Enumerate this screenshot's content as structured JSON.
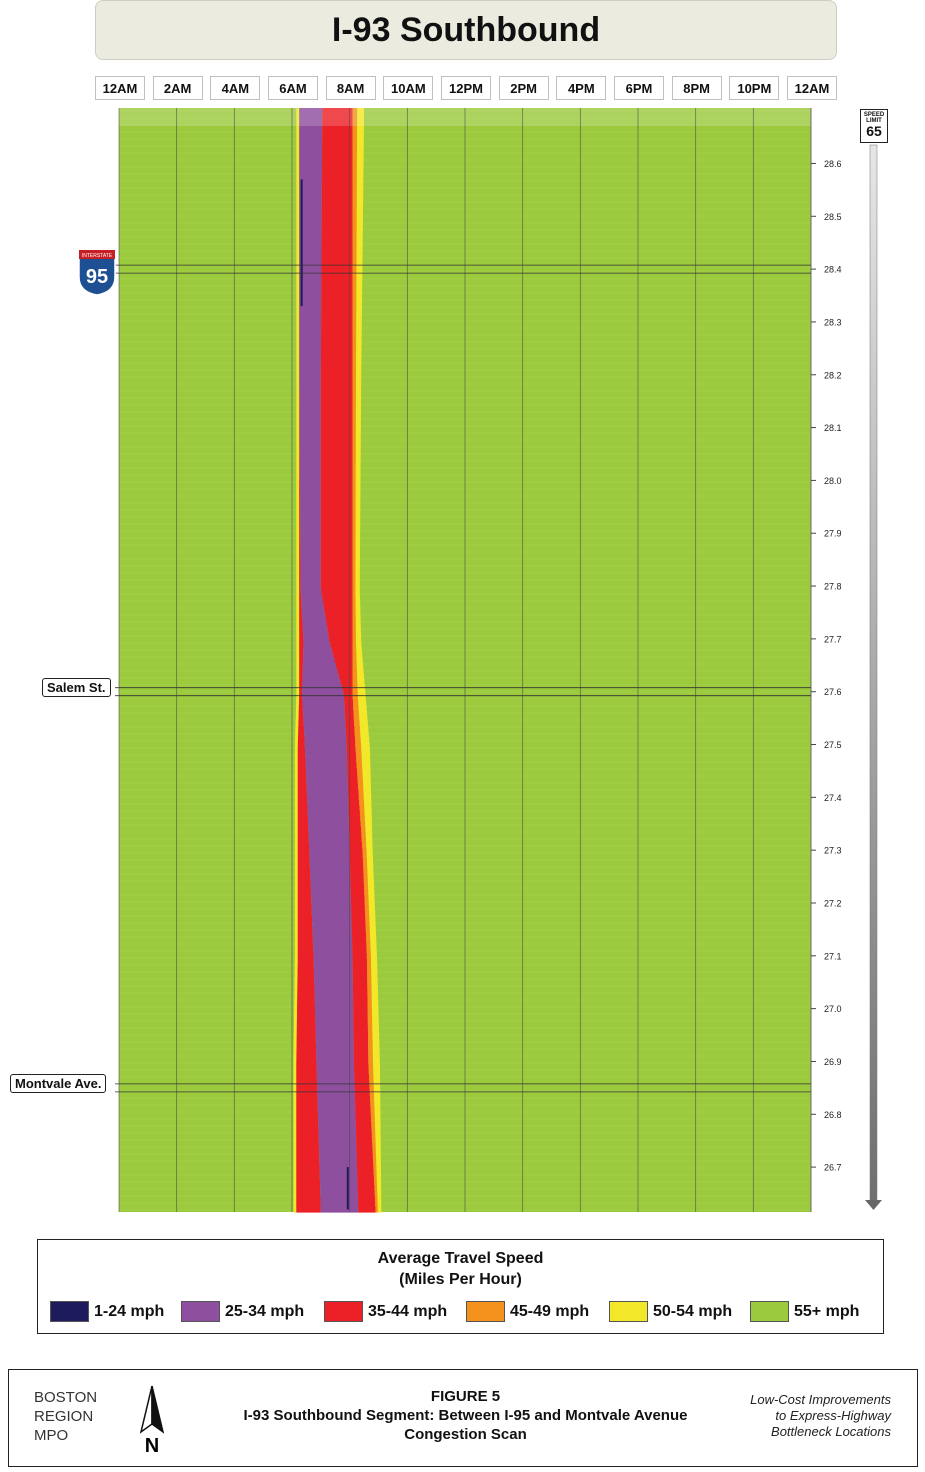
{
  "header": {
    "title": "I-93 Southbound"
  },
  "landmarks": [
    {
      "label": "95",
      "kind": "interstate-shield",
      "shield_top_text": "INTERSTATE",
      "milepost": 28.4
    },
    {
      "label": "Salem St.",
      "kind": "street",
      "milepost": 27.6
    },
    {
      "label": "Montvale Ave.",
      "kind": "street",
      "milepost": 26.85
    }
  ],
  "speed_limit_sign": {
    "top_text": "SPEED LIMIT",
    "value": "65"
  },
  "legend": {
    "title_line1": "Average Travel Speed",
    "title_line2": "(Miles Per Hour)",
    "items": [
      {
        "label": "1-24 mph",
        "color": "#1d1b5c"
      },
      {
        "label": "25-34 mph",
        "color": "#8e4f9e"
      },
      {
        "label": "35-44 mph",
        "color": "#ec2027"
      },
      {
        "label": "45-49 mph",
        "color": "#f5921e"
      },
      {
        "label": "50-54 mph",
        "color": "#f2e829"
      },
      {
        "label": "55+ mph",
        "color": "#9bca3c"
      }
    ]
  },
  "footer": {
    "org_line1": "BOSTON",
    "org_line2": "REGION",
    "org_line3": "MPO",
    "north_label": "N",
    "figure_label": "FIGURE 5",
    "figure_title_line1": "I-93 Southbound Segment: Between I-95 and Montvale Avenue",
    "figure_title_line2": "Congestion Scan",
    "study_line1": "Low-Cost Improvements",
    "study_line2": "to Express-Highway",
    "study_line3": "Bottleneck Locations"
  },
  "chart_data": {
    "type": "heatmap",
    "title": "I-93 Southbound",
    "x_tick_labels": [
      "12AM",
      "2AM",
      "4AM",
      "6AM",
      "8AM",
      "10AM",
      "12PM",
      "2PM",
      "4PM",
      "6PM",
      "8PM",
      "10PM",
      "12AM"
    ],
    "x_unit": "hour of day",
    "xlim": [
      0,
      24
    ],
    "y_tick_labels": [
      "28.6",
      "28.5",
      "28.4",
      "28.3",
      "28.2",
      "28.1",
      "28.0",
      "27.9",
      "27.8",
      "27.7",
      "27.6",
      "27.5",
      "27.4",
      "27.3",
      "27.2",
      "27.1",
      "27.0",
      "26.9",
      "26.8",
      "26.7"
    ],
    "y_unit": "milepost",
    "ylim": [
      26.615,
      28.705
    ],
    "background_category": "55+ mph",
    "congestion_profile": [
      {
        "milepost": 28.7,
        "yellow_start": 6.15,
        "purple_start": 6.25,
        "red_start": 7.05,
        "red_end": 8.1,
        "yellow_end": 8.5
      },
      {
        "milepost": 28.2,
        "yellow_start": 6.15,
        "purple_start": 6.25,
        "red_start": 7.0,
        "red_end": 8.1,
        "yellow_end": 8.4
      },
      {
        "milepost": 27.8,
        "yellow_start": 6.15,
        "purple_start": 6.3,
        "red_start": 7.0,
        "red_end": 8.1,
        "yellow_end": 8.35
      },
      {
        "milepost": 27.7,
        "yellow_start": 6.15,
        "purple_start": 6.4,
        "red_start": 7.3,
        "red_end": 8.1,
        "yellow_end": 8.4
      },
      {
        "milepost": 27.6,
        "yellow_start": 6.15,
        "purple_start": 6.35,
        "red_start": 7.8,
        "red_end": 8.1,
        "yellow_end": 8.55
      },
      {
        "milepost": 27.5,
        "yellow_start": 6.1,
        "purple_start": 6.45,
        "red_start": 7.9,
        "red_end": 8.2,
        "yellow_end": 8.7
      },
      {
        "milepost": 27.3,
        "yellow_start": 6.1,
        "purple_start": 6.6,
        "red_start": 8.0,
        "red_end": 8.45,
        "yellow_end": 8.8
      },
      {
        "milepost": 27.1,
        "yellow_start": 6.1,
        "purple_start": 6.75,
        "red_start": 8.1,
        "red_end": 8.6,
        "yellow_end": 8.95
      },
      {
        "milepost": 26.9,
        "yellow_start": 6.05,
        "purple_start": 6.85,
        "red_start": 8.15,
        "red_end": 8.65,
        "yellow_end": 9.05
      },
      {
        "milepost": 26.62,
        "yellow_start": 6.05,
        "purple_start": 7.0,
        "red_start": 8.3,
        "red_end": 8.9,
        "yellow_end": 9.1
      }
    ],
    "slow_cells": [
      {
        "category": "1-24 mph",
        "time_start": 6.3,
        "time_end": 6.35,
        "milepost_start": 28.33,
        "milepost_end": 28.57
      },
      {
        "category": "1-24 mph",
        "time_start": 7.9,
        "time_end": 7.95,
        "milepost_start": 26.62,
        "milepost_end": 26.7
      }
    ],
    "grid": true
  }
}
